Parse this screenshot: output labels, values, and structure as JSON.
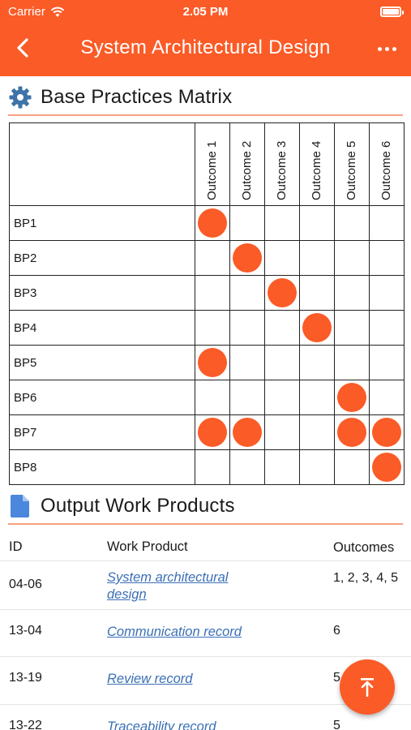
{
  "status_bar": {
    "carrier": "Carrier",
    "time": "2.05 PM"
  },
  "header": {
    "title": "System Architectural Design"
  },
  "matrix_section": {
    "title": "Base Practices Matrix",
    "outcomes": [
      "Outcome 1",
      "Outcome 2",
      "Outcome 3",
      "Outcome 4",
      "Outcome 5",
      "Outcome 6"
    ],
    "rows": [
      {
        "label": "BP1",
        "marks": [
          1,
          0,
          0,
          0,
          0,
          0
        ]
      },
      {
        "label": "BP2",
        "marks": [
          0,
          1,
          0,
          0,
          0,
          0
        ]
      },
      {
        "label": "BP3",
        "marks": [
          0,
          0,
          1,
          0,
          0,
          0
        ]
      },
      {
        "label": "BP4",
        "marks": [
          0,
          0,
          0,
          1,
          0,
          0
        ]
      },
      {
        "label": "BP5",
        "marks": [
          1,
          0,
          0,
          0,
          0,
          0
        ]
      },
      {
        "label": "BP6",
        "marks": [
          0,
          0,
          0,
          0,
          1,
          0
        ]
      },
      {
        "label": "BP7",
        "marks": [
          1,
          1,
          0,
          0,
          1,
          1
        ]
      },
      {
        "label": "BP8",
        "marks": [
          0,
          0,
          0,
          0,
          0,
          1
        ]
      }
    ],
    "accent_color": "#fb5b27"
  },
  "products_section": {
    "title": "Output Work Products",
    "columns": {
      "id": "ID",
      "product": "Work Product",
      "outcomes": "Outcomes"
    },
    "rows": [
      {
        "id": "04-06",
        "product": "System architectural design",
        "outcomes": "1, 2, 3, 4, 5"
      },
      {
        "id": "13-04",
        "product": "Communication record",
        "outcomes": "6"
      },
      {
        "id": "13-19",
        "product": "Review record",
        "outcomes": "5"
      },
      {
        "id": "13-22",
        "product": "Traceability record",
        "outcomes": "5"
      }
    ]
  },
  "icons": {
    "back": "chevron-left-icon",
    "more": "more-horizontal-icon",
    "matrix": "gear-icon",
    "products": "document-icon",
    "fab": "scroll-to-top-icon"
  },
  "colors": {
    "primary": "#fb5b27",
    "link": "#3a6fb5",
    "divider": "#f7a080"
  }
}
